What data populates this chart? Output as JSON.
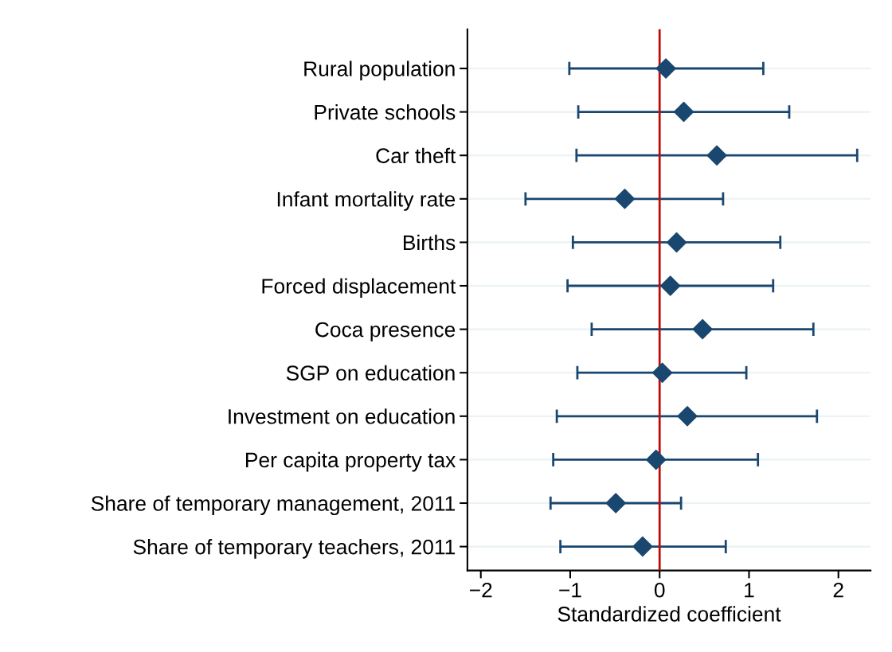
{
  "chart_data": {
    "type": "scatter",
    "orientation": "horizontal",
    "xlabel": "Standardized coefficient",
    "categories": [
      "Rural population",
      "Private schools",
      "Car theft",
      "Infant mortality rate",
      "Births",
      "Forced displacement",
      "Coca presence",
      "SGP on education",
      "Investment on education",
      "Per capita property tax",
      "Share of temporary management, 2011",
      "Share of temporary teachers, 2011"
    ],
    "series": [
      {
        "color": "#1a476f",
        "values": [
          0.07,
          0.27,
          0.64,
          -0.39,
          0.19,
          0.12,
          0.48,
          0.03,
          0.31,
          -0.04,
          -0.49,
          -0.19
        ],
        "errors": [
          [
            -1.01,
            1.16
          ],
          [
            -0.91,
            1.45
          ],
          [
            -0.93,
            2.21
          ],
          [
            -1.5,
            0.71
          ],
          [
            -0.97,
            1.35
          ],
          [
            -1.03,
            1.27
          ],
          [
            -0.76,
            1.72
          ],
          [
            -0.92,
            0.97
          ],
          [
            -1.15,
            1.76
          ],
          [
            -1.19,
            1.1
          ],
          [
            -1.22,
            0.24
          ],
          [
            -1.11,
            0.74
          ]
        ]
      }
    ],
    "xlim": [
      -2.15,
      2.36
    ],
    "xticks": [
      {
        "value": -2,
        "label": "−2"
      },
      {
        "value": -1,
        "label": "−1"
      },
      0,
      1,
      2
    ],
    "ref_lines": [
      {
        "axis": "x",
        "value": 0,
        "color": "#c10a0a"
      }
    ],
    "grid": "y",
    "marker": "diamond",
    "legend": false
  }
}
